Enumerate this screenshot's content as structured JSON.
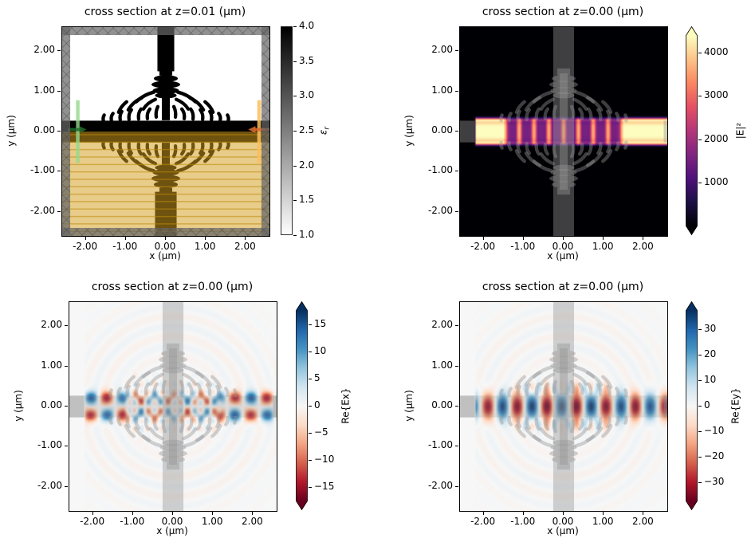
{
  "figure": {
    "background": "#ffffff",
    "text_color": "#000000"
  },
  "panels": [
    {
      "id": "permittivity",
      "title": "cross section at z=0.01 (μm)",
      "xlabel": "x (μm)",
      "ylabel": "y (μm)",
      "xticks": [
        "-2.00",
        "-1.00",
        "0.00",
        "1.00",
        "2.00"
      ],
      "yticks": [
        "2.00",
        "1.00",
        "0.00",
        "-1.00",
        "-2.00"
      ],
      "colorbar": {
        "base": "ε",
        "sub": "r",
        "ticks": [
          "4.0",
          "3.5",
          "3.0",
          "2.5",
          "2.0",
          "1.5",
          "1.0"
        ]
      }
    },
    {
      "id": "E2",
      "title": "cross section at z=0.00 (μm)",
      "xlabel": "x (μm)",
      "ylabel": "y (μm)",
      "xticks": [
        "-2.00",
        "-1.00",
        "0.00",
        "1.00",
        "2.00"
      ],
      "yticks": [
        "2.00",
        "1.00",
        "0.00",
        "-1.00",
        "-2.00"
      ],
      "colorbar": {
        "base": "|E|²",
        "sub": "",
        "ticks": [
          "4000",
          "3000",
          "2000",
          "1000"
        ]
      }
    },
    {
      "id": "Ex",
      "title": "cross section at z=0.00 (μm)",
      "xlabel": "x (μm)",
      "ylabel": "y (μm)",
      "xticks": [
        "-2.00",
        "-1.00",
        "0.00",
        "1.00",
        "2.00"
      ],
      "yticks": [
        "2.00",
        "1.00",
        "0.00",
        "-1.00",
        "-2.00"
      ],
      "colorbar": {
        "base": "Re{Ex}",
        "sub": "",
        "ticks": [
          "15",
          "10",
          "5",
          "0",
          "−5",
          "−10",
          "−15"
        ]
      }
    },
    {
      "id": "Ey",
      "title": "cross section at z=0.00 (μm)",
      "xlabel": "x (μm)",
      "ylabel": "y (μm)",
      "xticks": [
        "-2.00",
        "-1.00",
        "0.00",
        "1.00",
        "2.00"
      ],
      "yticks": [
        "2.00",
        "1.00",
        "0.00",
        "-1.00",
        "-2.00"
      ],
      "colorbar": {
        "base": "Re{Ey}",
        "sub": "",
        "ticks": [
          "30",
          "20",
          "10",
          "0",
          "−10",
          "−20",
          "−30"
        ]
      }
    }
  ],
  "chart_data": [
    {
      "type": "heatmap",
      "panel": "top-left",
      "title": "cross section at z=0.01 (μm)",
      "xlabel": "x (μm)",
      "ylabel": "y (μm)",
      "xlim": [
        -2.59,
        2.59
      ],
      "ylim": [
        -2.6,
        2.6
      ],
      "xtick_values": [
        -2,
        -1,
        0,
        1,
        2
      ],
      "ytick_values": [
        2,
        1,
        0,
        -1,
        -2
      ],
      "colormap": "Greys",
      "colorbar": {
        "label": "eps_r",
        "vmin": 1.0,
        "vmax": 4.0,
        "ticks": [
          4.0,
          3.5,
          3.0,
          2.5,
          2.0,
          1.5,
          1.0
        ],
        "extend": "neither"
      },
      "content": {
        "eps_air": 1.0,
        "eps_structure": 4.0,
        "slab_y": [
          -0.27,
          0.27
        ],
        "upper_trunk_halfwidth": 0.21,
        "lower_trunk_halfwidth": 0.27,
        "trunk_y_start": 1.5,
        "substrate_overlay_y": [
          -2.6,
          0.0
        ],
        "substrate_color": "#d29d1c",
        "substrate_alpha": 0.52,
        "substrate_stripe_spacing_um": 0.185,
        "pml_border_width_um": 0.2,
        "pml_color": "#666666",
        "source": {
          "x": -2.2,
          "span_y": [
            -0.78,
            0.78
          ],
          "direction": "+x",
          "line_color": "#96d78c",
          "arrow_color": "#226e2c"
        },
        "monitor": {
          "x": 2.33,
          "span_y": [
            -0.78,
            0.78
          ],
          "direction": "-x",
          "line_color": "#fcbe5a",
          "arrow_color": "#dd6a30"
        }
      }
    },
    {
      "type": "heatmap",
      "panel": "top-right",
      "title": "cross section at z=0.00 (μm)",
      "xlabel": "x (μm)",
      "ylabel": "y (μm)",
      "xlim": [
        -2.59,
        2.59
      ],
      "ylim": [
        -2.6,
        2.6
      ],
      "xtick_values": [
        -2,
        -1,
        0,
        1,
        2
      ],
      "ytick_values": [
        2,
        1,
        0,
        -1,
        -2
      ],
      "colormap": "magma",
      "colorbar": {
        "label": "|E|^2",
        "vmin": 0,
        "vmax": 4400,
        "ticks": [
          4000,
          3000,
          2000,
          1000
        ],
        "extend": "both"
      },
      "content": {
        "source_x": -2.2,
        "band_halfwidth": 0.3,
        "edge_ridge_y": 0.295,
        "bead_period_um": 0.37,
        "standing_region_halfwidth": 1.5,
        "peak_value": 4400,
        "structure_overlay": {
          "vertical_band_halfwidth": 0.26,
          "stub_left_x": [
            -2.59,
            -2.22
          ],
          "stub_right_x": [
            2.5,
            2.59
          ],
          "stub_y": [
            -0.27,
            0.27
          ]
        }
      }
    },
    {
      "type": "heatmap",
      "panel": "bottom-left",
      "title": "cross section at z=0.00 (μm)",
      "xlabel": "x (μm)",
      "ylabel": "y (μm)",
      "xlim": [
        -2.59,
        2.59
      ],
      "ylim": [
        -2.6,
        2.6
      ],
      "xtick_values": [
        -2,
        -1,
        0,
        1,
        2
      ],
      "ytick_values": [
        2,
        1,
        0,
        -1,
        -2
      ],
      "colormap": "RdBu",
      "colorbar": {
        "label": "Re{Ex}",
        "vmin": -17.6,
        "vmax": 17.6,
        "ticks": [
          15,
          10,
          5,
          0,
          -5,
          -10,
          -15
        ],
        "extend": "both"
      },
      "content": {
        "pattern": "antisymmetric two-lobe mode, sign flips across y=0",
        "amplitude": 15,
        "period_um": 0.8,
        "phase_antinode_x": -2.05,
        "lobe_center_y": 0.21,
        "lobe_sigma_y": 0.16,
        "scrambled_region_halfwidth": 1.05,
        "source_x": -2.2,
        "first_upper_lobe_sign": "positive (blue)"
      }
    },
    {
      "type": "heatmap",
      "panel": "bottom-right",
      "title": "cross section at z=0.00 (μm)",
      "xlabel": "x (μm)",
      "ylabel": "y (μm)",
      "xlim": [
        -2.59,
        2.59
      ],
      "ylim": [
        -2.6,
        2.6
      ],
      "xtick_values": [
        -2,
        -1,
        0,
        1,
        2
      ],
      "ytick_values": [
        2,
        1,
        0,
        -1,
        -2
      ],
      "colormap": "RdBu",
      "colorbar": {
        "label": "Re{Ey}",
        "vmin": -37.4,
        "vmax": 37.4,
        "ticks": [
          30,
          20,
          10,
          0,
          -10,
          -20,
          -30
        ],
        "extend": "both"
      },
      "content": {
        "pattern": "symmetric single-lobe mode centered on y=0",
        "amplitude": 35,
        "period_um": 0.74,
        "negative_antinode_x": -1.9,
        "gauss_sigma_y": 0.31,
        "source_x": -2.2
      }
    }
  ]
}
